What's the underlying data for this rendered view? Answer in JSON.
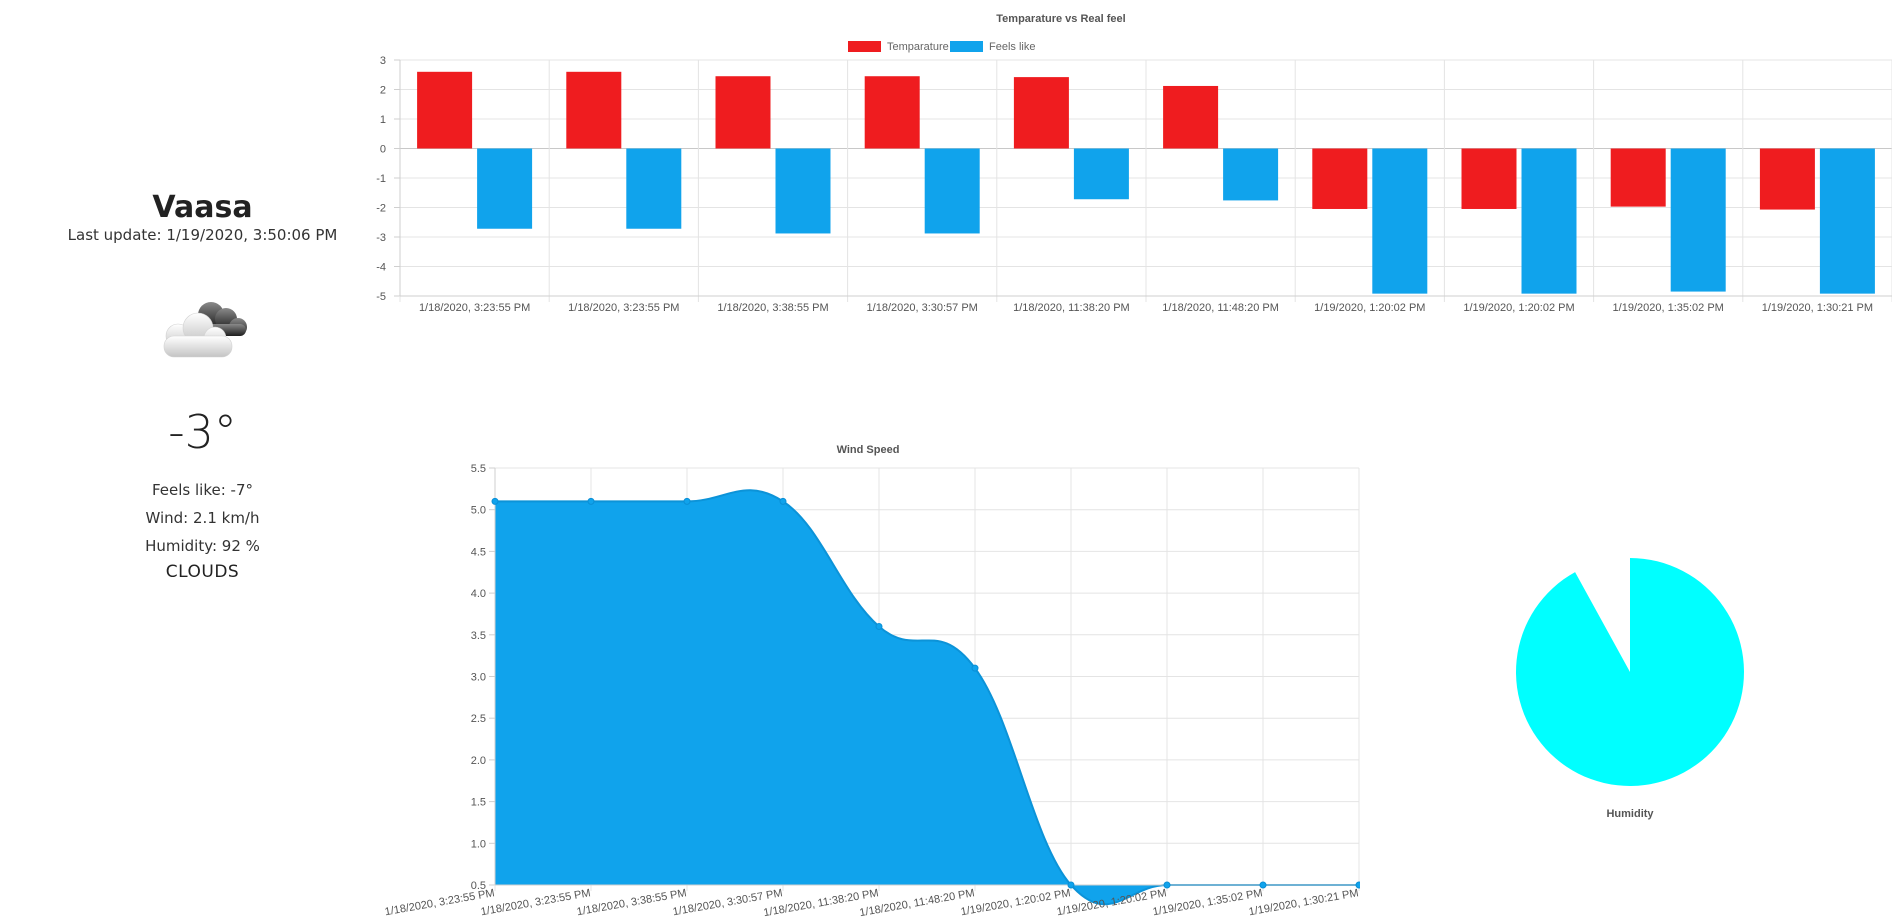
{
  "weather": {
    "city": "Vaasa",
    "last_update": "Last update: 1/19/2020, 3:50:06 PM",
    "icon": "clouds-icon",
    "temperature": "-3°",
    "feels_like": "Feels like: -7°",
    "wind": "Wind: 2.1 km/h",
    "humidity": "Humidity: 92 %",
    "condition": "CLOUDS"
  },
  "colors": {
    "temperature": "#ef1c1f",
    "feels_like": "#10a3ec",
    "pie": "#00ffff",
    "grid": "#e4e4e4",
    "axis": "#cfcfcf",
    "tick_text": "#555555"
  },
  "chart_data": [
    {
      "type": "bar",
      "title": "Temparature vs Real feel",
      "categories": [
        "1/18/2020, 3:23:55 PM",
        "1/18/2020, 3:23:55 PM",
        "1/18/2020, 3:38:55 PM",
        "1/18/2020, 3:30:57 PM",
        "1/18/2020, 11:38:20 PM",
        "1/18/2020, 11:48:20 PM",
        "1/19/2020, 1:20:02 PM",
        "1/19/2020, 1:20:02 PM",
        "1/19/2020, 1:35:02 PM",
        "1/19/2020, 1:30:21 PM"
      ],
      "series": [
        {
          "name": "Temparature",
          "values": [
            2.6,
            2.6,
            2.45,
            2.45,
            2.42,
            2.12,
            -2.05,
            -2.05,
            -1.97,
            -2.07
          ]
        },
        {
          "name": "Feels like",
          "values": [
            -2.72,
            -2.72,
            -2.88,
            -2.88,
            -1.72,
            -1.76,
            -4.92,
            -4.92,
            -4.85,
            -4.92
          ]
        }
      ],
      "yticks": [
        3,
        2,
        1,
        0,
        -1,
        -2,
        -3,
        -4,
        -5
      ],
      "ylim": [
        -5,
        3
      ],
      "legend": "top",
      "grid": true
    },
    {
      "type": "area",
      "title": "Wind Speed",
      "categories": [
        "1/18/2020, 3:23:55 PM",
        "1/18/2020, 3:23:55 PM",
        "1/18/2020, 3:38:55 PM",
        "1/18/2020, 3:30:57 PM",
        "1/18/2020, 11:38:20 PM",
        "1/18/2020, 11:48:20 PM",
        "1/19/2020, 1:20:02 PM",
        "1/19/2020, 1:20:02 PM",
        "1/19/2020, 1:35:02 PM",
        "1/19/2020, 1:30:21 PM"
      ],
      "values": [
        5.1,
        5.1,
        5.1,
        5.1,
        3.6,
        3.1,
        0.5,
        0.5,
        0.5,
        0.5
      ],
      "yticks": [
        "5.5",
        "5.0",
        "4.5",
        "4.0",
        "3.5",
        "3.0",
        "2.5",
        "2.0",
        "1.5",
        "1.0",
        "0.5"
      ],
      "ylim": [
        0.5,
        5.5
      ],
      "grid": true
    },
    {
      "type": "pie",
      "title": "Humidity",
      "values": [
        92,
        8
      ]
    }
  ]
}
